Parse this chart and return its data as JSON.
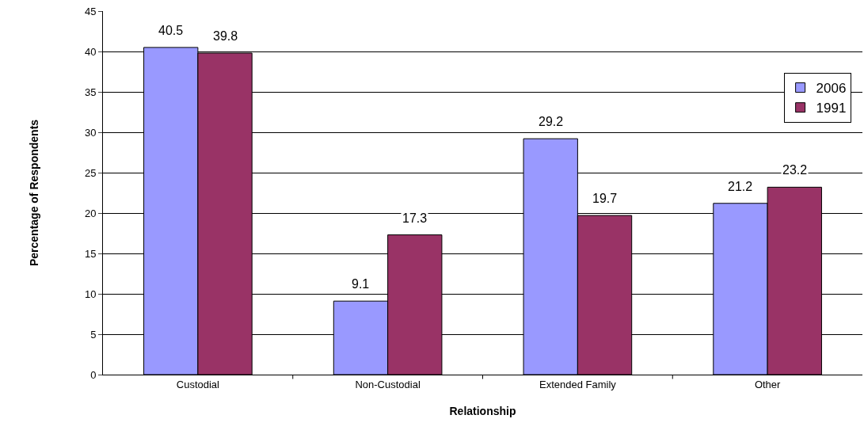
{
  "chart_data": {
    "type": "bar",
    "xlabel": "Relationship",
    "ylabel": "Percentage of Respondents",
    "categories": [
      "Custodial",
      "Non-Custodial",
      "Extended Family",
      "Other"
    ],
    "series": [
      {
        "name": "2006",
        "color": "#9999ff",
        "values": [
          40.5,
          9.1,
          29.2,
          21.2
        ]
      },
      {
        "name": "1991",
        "color": "#993366",
        "values": [
          39.8,
          17.3,
          19.7,
          23.2
        ]
      }
    ],
    "ylim": [
      0,
      45
    ],
    "yticks": [
      0,
      5,
      10,
      15,
      20,
      25,
      30,
      35,
      40,
      45
    ],
    "grid": "y",
    "legend": "top right",
    "data_labels": true
  }
}
